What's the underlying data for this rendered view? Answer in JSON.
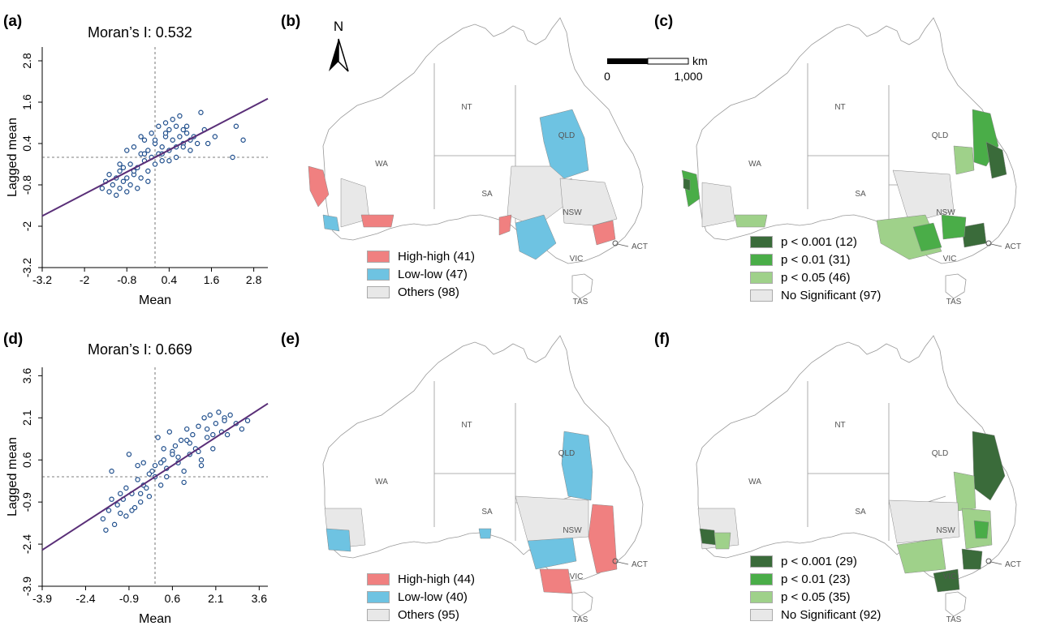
{
  "panels": {
    "a": "(a)",
    "b": "(b)",
    "c": "(c)",
    "d": "(d)",
    "e": "(e)",
    "f": "(f)"
  },
  "scatter_top": {
    "moran_title": "Moran’s I: 0.532"
  },
  "scatter_bottom": {
    "moran_title": "Moran’s I: 0.669"
  },
  "north_label": "N",
  "scale_bar": {
    "unit": "km",
    "start": "0",
    "end": "1,000"
  },
  "regions": {
    "nt": "NT",
    "wa": "WA",
    "qld": "QLD",
    "sa": "SA",
    "nsw": "NSW",
    "act": "ACT",
    "vic": "VIC",
    "tas": "TAS"
  },
  "colors": {
    "high_high": "#f08080",
    "low_low": "#6ec3e2",
    "others": "#e8e8e8",
    "p001": "#3a6b3a",
    "p01": "#4aad48",
    "p05": "#9fd18a",
    "not_sig": "#e8e8e8",
    "point_stroke": "#1f4e8c",
    "fit_line": "#5a2f78"
  },
  "legend_b": {
    "hh": "High-high (41)",
    "ll": "Low-low (47)",
    "others": "Others (98)"
  },
  "legend_c": {
    "p001": "p < 0.001 (12)",
    "p01": "p < 0.01 (31)",
    "p05": "p < 0.05 (46)",
    "ns": "No Significant (97)"
  },
  "legend_e": {
    "hh": "High-high (44)",
    "ll": "Low-low (40)",
    "others": "Others (95)"
  },
  "legend_f": {
    "p001": "p < 0.001 (29)",
    "p01": "p < 0.01 (23)",
    "p05": "p < 0.05 (35)",
    "ns": "No Significant (92)"
  },
  "chart_data": [
    {
      "type": "scatter",
      "title": "Moran’s I: 0.532",
      "xlabel": "Mean",
      "ylabel": "Lagged mean",
      "xlim": [
        -3.2,
        3.2
      ],
      "ylim": [
        -3.2,
        3.2
      ],
      "xticks": [
        "-3.2",
        "-2",
        "-0.8",
        "0.4",
        "1.6",
        "2.8"
      ],
      "yticks": [
        "-3.2",
        "-2",
        "-0.8",
        "0.4",
        "1.6",
        "2.8"
      ],
      "slope": 0.532,
      "x": [
        -1.5,
        -1.4,
        -1.3,
        -1.3,
        -1.2,
        -1.1,
        -1.1,
        -1.0,
        -1.0,
        -0.9,
        -0.9,
        -0.8,
        -0.8,
        -0.7,
        -0.7,
        -0.6,
        -0.6,
        -0.5,
        -0.5,
        -0.4,
        -0.4,
        -0.3,
        -0.3,
        -0.2,
        -0.2,
        -0.1,
        -0.1,
        0.0,
        0.0,
        0.1,
        0.1,
        0.2,
        0.2,
        0.3,
        0.3,
        0.4,
        0.4,
        0.5,
        0.5,
        0.6,
        0.6,
        0.7,
        0.7,
        0.8,
        0.8,
        0.9,
        1.0,
        1.1,
        1.2,
        1.3,
        1.5,
        1.7,
        2.2,
        2.3,
        2.5,
        -1.0,
        -0.6,
        -0.2,
        0.2,
        0.6,
        1.0,
        -0.4,
        0.0,
        0.4,
        0.8,
        -0.8,
        -0.3,
        0.3,
        0.9,
        1.4
      ],
      "y": [
        -0.9,
        -0.7,
        -1.0,
        -0.5,
        -0.8,
        -0.6,
        -1.1,
        -0.4,
        -0.9,
        -0.7,
        -0.3,
        -0.6,
        -1.0,
        -0.2,
        -0.8,
        -0.5,
        0.3,
        -0.3,
        -0.9,
        0.1,
        -0.6,
        -0.1,
        0.5,
        -0.4,
        0.2,
        0.0,
        0.7,
        -0.2,
        0.4,
        0.1,
        0.9,
        0.3,
        -0.1,
        0.6,
        1.0,
        0.2,
        0.8,
        0.5,
        1.1,
        0.3,
        0.9,
        0.6,
        1.2,
        0.4,
        0.8,
        0.7,
        0.5,
        0.6,
        0.4,
        1.3,
        0.4,
        0.6,
        0.0,
        0.9,
        0.5,
        -0.2,
        -0.4,
        -0.7,
        0.1,
        0.0,
        0.2,
        0.6,
        0.5,
        -0.1,
        0.3,
        0.2,
        0.1,
        0.7,
        0.9,
        0.8
      ]
    },
    {
      "type": "scatter",
      "title": "Moran’s I: 0.669",
      "xlabel": "Mean",
      "ylabel": "Lagged mean",
      "xlim": [
        -3.9,
        3.9
      ],
      "ylim": [
        -3.9,
        3.9
      ],
      "xticks": [
        "-3.9",
        "-2.4",
        "-0.9",
        "0.6",
        "2.1",
        "3.6"
      ],
      "yticks": [
        "-3.9",
        "-2.4",
        "-0.9",
        "0.6",
        "2.1",
        "3.6"
      ],
      "slope": 0.669,
      "x": [
        -1.8,
        -1.6,
        -1.5,
        -1.4,
        -1.3,
        -1.2,
        -1.1,
        -1.0,
        -0.9,
        -0.8,
        -0.7,
        -0.6,
        -0.5,
        -0.4,
        -0.3,
        -0.2,
        -0.1,
        0.0,
        0.1,
        0.2,
        0.3,
        0.4,
        0.5,
        0.6,
        0.7,
        0.8,
        0.9,
        1.0,
        1.1,
        1.2,
        1.3,
        1.4,
        1.5,
        1.6,
        1.7,
        1.8,
        1.9,
        2.0,
        2.1,
        2.2,
        2.3,
        2.4,
        2.5,
        2.6,
        2.8,
        3.0,
        3.2,
        -1.2,
        -0.8,
        -0.4,
        0.0,
        0.4,
        0.8,
        1.2,
        1.6,
        2.0,
        -1.5,
        -1.0,
        -0.5,
        0.2,
        0.6,
        1.0,
        1.5,
        -0.6,
        0.3,
        1.8,
        2.4,
        -1.7,
        -0.2,
        1.1
      ],
      "y": [
        -1.5,
        -1.2,
        0.2,
        -1.7,
        -1.0,
        -1.3,
        -0.8,
        -1.4,
        0.8,
        -0.6,
        -1.1,
        0.4,
        -0.9,
        0.5,
        -0.4,
        -0.7,
        0.2,
        0.0,
        1.4,
        -0.3,
        0.6,
        0.3,
        1.6,
        0.9,
        1.1,
        0.5,
        1.3,
        -0.2,
        1.7,
        0.8,
        1.5,
        1.0,
        1.8,
        0.4,
        2.1,
        1.4,
        2.2,
        1.0,
        1.9,
        2.3,
        1.6,
        2.1,
        1.5,
        2.2,
        1.9,
        1.7,
        2.0,
        -0.6,
        -1.2,
        -0.3,
        0.4,
        0.0,
        0.7,
        1.2,
        0.6,
        1.5,
        -0.8,
        -0.4,
        -0.6,
        0.5,
        0.8,
        0.2,
        0.9,
        -0.1,
        1.0,
        1.7,
        2.0,
        -1.9,
        0.1,
        1.3
      ]
    }
  ]
}
